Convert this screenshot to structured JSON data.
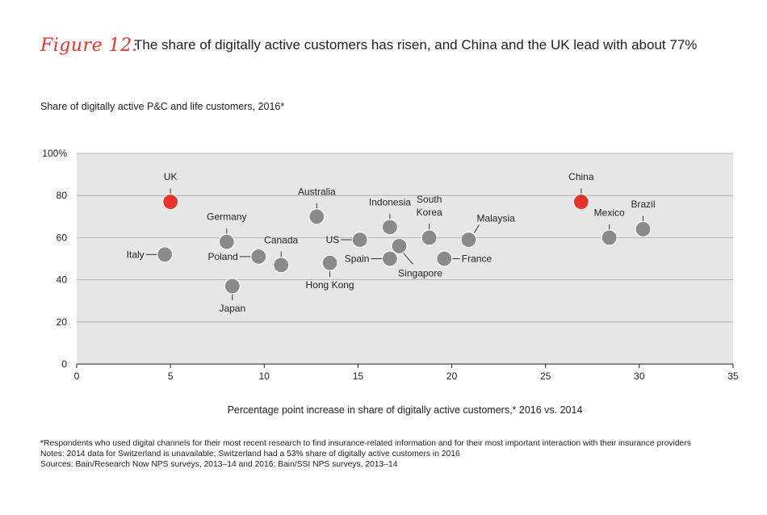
{
  "figure": {
    "label": "Figure 12:",
    "title": "The share of digitally active customers has risen, and China and the UK lead with about 77%"
  },
  "chart_data": {
    "type": "scatter",
    "title": "Share of digitally active P&C and life customers, 2016*",
    "xlabel": "Percentage point increase in share of digitally active customers,* 2016 vs. 2014",
    "ylabel": "",
    "xlim": [
      0,
      35
    ],
    "ylim": [
      0,
      100
    ],
    "x_ticks": [
      "0",
      "5",
      "10",
      "15",
      "20",
      "25",
      "30",
      "35"
    ],
    "y_ticks": [
      "0",
      "20",
      "40",
      "60",
      "80",
      "100%"
    ],
    "grid": true,
    "colors": {
      "highlight": "#e8322b",
      "default": "#8a8a8a",
      "plot_bg": "#e6e6e6"
    },
    "points": [
      {
        "name": "UK",
        "x": 5.0,
        "y": 77,
        "highlight": true
      },
      {
        "name": "Italy",
        "x": 4.7,
        "y": 52,
        "highlight": false
      },
      {
        "name": "Germany",
        "x": 8.0,
        "y": 58,
        "highlight": false
      },
      {
        "name": "Japan",
        "x": 8.3,
        "y": 37,
        "highlight": false
      },
      {
        "name": "Poland",
        "x": 9.7,
        "y": 51,
        "highlight": false
      },
      {
        "name": "Canada",
        "x": 10.9,
        "y": 47,
        "highlight": false
      },
      {
        "name": "Australia",
        "x": 12.8,
        "y": 70,
        "highlight": false
      },
      {
        "name": "Hong Kong",
        "x": 13.5,
        "y": 48,
        "highlight": false
      },
      {
        "name": "US",
        "x": 15.1,
        "y": 59,
        "highlight": false
      },
      {
        "name": "Indonesia",
        "x": 16.7,
        "y": 65,
        "highlight": false
      },
      {
        "name": "Spain",
        "x": 16.7,
        "y": 50,
        "highlight": false
      },
      {
        "name": "Singapore",
        "x": 17.2,
        "y": 56,
        "highlight": false
      },
      {
        "name": "South Korea",
        "x": 18.8,
        "y": 60,
        "highlight": false
      },
      {
        "name": "France",
        "x": 19.6,
        "y": 50,
        "highlight": false
      },
      {
        "name": "Malaysia",
        "x": 20.9,
        "y": 59,
        "highlight": false
      },
      {
        "name": "China",
        "x": 26.9,
        "y": 77,
        "highlight": true
      },
      {
        "name": "Mexico",
        "x": 28.4,
        "y": 60,
        "highlight": false
      },
      {
        "name": "Brazil",
        "x": 30.2,
        "y": 64,
        "highlight": false
      }
    ]
  },
  "notes": [
    "*Respondents who used digital channels for their most recent research to find insurance-related information and for their most important interaction with their insurance providers",
    "Notes: 2014 data for Switzerland is unavailable; Switzerland had a 53% share of digitally active customers in 2016",
    "Sources: Bain/Research Now NPS surveys, 2013–14 and 2016; Bain/SSI NPS surveys, 2013–14"
  ]
}
